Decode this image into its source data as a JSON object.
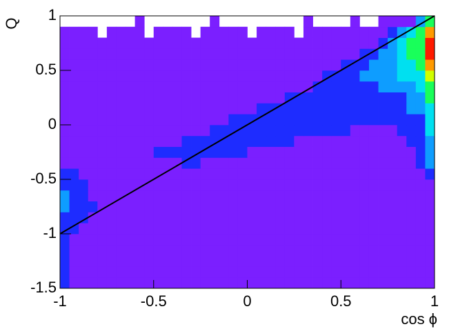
{
  "chart_data": {
    "type": "heatmap",
    "xlabel": "cos ϕ",
    "ylabel": "Q",
    "xlim": [
      -1,
      1
    ],
    "ylim": [
      -1.5,
      1
    ],
    "xticks": [
      -1,
      -0.5,
      0,
      0.5,
      1
    ],
    "yticks": [
      -1.5,
      -1,
      -0.5,
      0,
      0.5,
      1
    ],
    "colors": [
      "#7b1fff",
      "#1e2cff",
      "#0e9dff",
      "#00e0f0",
      "#19ff5a",
      "#d0ff00",
      "#ff9a00",
      "#ff1a00"
    ],
    "z": [
      [
        2,
        1,
        1,
        1,
        1,
        1,
        1,
        1,
        1,
        1,
        1,
        1,
        1,
        1,
        1,
        1,
        1,
        1,
        1,
        1,
        1,
        1,
        1,
        1,
        1,
        1,
        1,
        1,
        1,
        1,
        1,
        1,
        1,
        1,
        1,
        1,
        1,
        1,
        1,
        1
      ],
      [
        2,
        1,
        1,
        1,
        1,
        1,
        1,
        1,
        1,
        1,
        1,
        1,
        1,
        1,
        1,
        1,
        1,
        1,
        1,
        1,
        1,
        1,
        1,
        1,
        1,
        1,
        1,
        1,
        1,
        1,
        1,
        1,
        1,
        1,
        1,
        1,
        1,
        1,
        1,
        1
      ],
      [
        2,
        1,
        1,
        1,
        1,
        1,
        1,
        1,
        1,
        1,
        1,
        1,
        1,
        1,
        1,
        1,
        1,
        1,
        1,
        1,
        1,
        1,
        1,
        1,
        1,
        1,
        1,
        1,
        1,
        1,
        1,
        1,
        1,
        1,
        1,
        1,
        1,
        1,
        1,
        1
      ],
      [
        2,
        1,
        1,
        1,
        1,
        1,
        1,
        1,
        1,
        1,
        1,
        1,
        1,
        1,
        1,
        1,
        1,
        1,
        1,
        1,
        1,
        1,
        1,
        1,
        1,
        1,
        1,
        1,
        1,
        1,
        1,
        1,
        1,
        1,
        1,
        1,
        1,
        1,
        1,
        1
      ],
      [
        2,
        1,
        1,
        1,
        1,
        1,
        1,
        1,
        1,
        1,
        1,
        1,
        1,
        1,
        1,
        1,
        1,
        1,
        1,
        1,
        1,
        1,
        1,
        1,
        1,
        1,
        1,
        1,
        1,
        1,
        1,
        1,
        1,
        1,
        1,
        1,
        1,
        1,
        1,
        1
      ],
      [
        2,
        2,
        1,
        1,
        1,
        1,
        1,
        1,
        1,
        1,
        1,
        1,
        1,
        1,
        1,
        1,
        1,
        1,
        1,
        1,
        1,
        1,
        1,
        1,
        1,
        1,
        1,
        1,
        1,
        1,
        1,
        1,
        1,
        1,
        1,
        1,
        1,
        1,
        1,
        1
      ],
      [
        2,
        2,
        2,
        1,
        1,
        1,
        1,
        1,
        1,
        1,
        1,
        1,
        1,
        1,
        1,
        1,
        1,
        1,
        1,
        1,
        1,
        1,
        1,
        1,
        1,
        1,
        1,
        1,
        1,
        1,
        1,
        1,
        1,
        1,
        1,
        1,
        1,
        1,
        1,
        1
      ],
      [
        3,
        2,
        2,
        2,
        1,
        1,
        1,
        1,
        1,
        1,
        1,
        1,
        1,
        1,
        1,
        1,
        1,
        1,
        1,
        1,
        1,
        1,
        1,
        1,
        1,
        1,
        1,
        1,
        1,
        1,
        1,
        1,
        1,
        1,
        1,
        1,
        1,
        1,
        1,
        1
      ],
      [
        3,
        2,
        2,
        1,
        1,
        1,
        1,
        1,
        1,
        1,
        1,
        1,
        1,
        1,
        1,
        1,
        1,
        1,
        1,
        1,
        1,
        1,
        1,
        1,
        1,
        1,
        1,
        1,
        1,
        1,
        1,
        1,
        1,
        1,
        1,
        1,
        1,
        1,
        1,
        1
      ],
      [
        2,
        2,
        2,
        1,
        1,
        1,
        1,
        1,
        1,
        1,
        1,
        1,
        1,
        1,
        1,
        1,
        1,
        1,
        1,
        1,
        1,
        1,
        1,
        1,
        1,
        1,
        1,
        1,
        1,
        1,
        1,
        1,
        1,
        1,
        1,
        1,
        1,
        1,
        1,
        1
      ],
      [
        2,
        2,
        1,
        1,
        1,
        1,
        1,
        1,
        1,
        1,
        1,
        1,
        1,
        1,
        1,
        1,
        1,
        1,
        1,
        1,
        1,
        1,
        1,
        1,
        1,
        1,
        1,
        1,
        1,
        1,
        1,
        1,
        1,
        1,
        1,
        1,
        1,
        1,
        1,
        2
      ],
      [
        1,
        1,
        1,
        1,
        1,
        1,
        1,
        1,
        1,
        1,
        1,
        1,
        1,
        2,
        2,
        1,
        1,
        1,
        1,
        1,
        1,
        1,
        1,
        1,
        1,
        1,
        1,
        1,
        1,
        1,
        1,
        1,
        1,
        1,
        1,
        1,
        1,
        1,
        2,
        3
      ],
      [
        1,
        1,
        1,
        1,
        1,
        1,
        1,
        1,
        1,
        1,
        2,
        2,
        2,
        2,
        2,
        2,
        2,
        2,
        2,
        2,
        1,
        1,
        1,
        1,
        1,
        1,
        1,
        1,
        1,
        1,
        1,
        1,
        1,
        1,
        1,
        1,
        1,
        1,
        2,
        3
      ],
      [
        1,
        1,
        1,
        1,
        1,
        1,
        1,
        1,
        1,
        1,
        1,
        1,
        1,
        2,
        2,
        2,
        2,
        2,
        2,
        2,
        2,
        2,
        2,
        2,
        2,
        1,
        1,
        1,
        1,
        1,
        1,
        1,
        1,
        1,
        1,
        1,
        1,
        2,
        2,
        3
      ],
      [
        1,
        1,
        1,
        1,
        1,
        1,
        1,
        1,
        1,
        1,
        1,
        1,
        1,
        1,
        1,
        1,
        2,
        2,
        2,
        2,
        2,
        2,
        2,
        2,
        2,
        2,
        2,
        2,
        2,
        2,
        2,
        1,
        1,
        1,
        1,
        1,
        2,
        2,
        2,
        4
      ],
      [
        1,
        1,
        1,
        1,
        1,
        1,
        1,
        1,
        1,
        1,
        1,
        1,
        1,
        1,
        1,
        1,
        1,
        1,
        2,
        2,
        2,
        2,
        2,
        2,
        2,
        2,
        2,
        2,
        2,
        2,
        2,
        2,
        2,
        2,
        2,
        2,
        2,
        2,
        2,
        4
      ],
      [
        1,
        1,
        1,
        1,
        1,
        1,
        1,
        1,
        1,
        1,
        1,
        1,
        1,
        1,
        1,
        1,
        1,
        1,
        1,
        1,
        1,
        2,
        2,
        2,
        2,
        2,
        2,
        2,
        2,
        2,
        2,
        2,
        2,
        2,
        2,
        2,
        2,
        3,
        3,
        4
      ],
      [
        1,
        1,
        1,
        1,
        1,
        1,
        1,
        1,
        1,
        1,
        1,
        1,
        1,
        1,
        1,
        1,
        1,
        1,
        1,
        1,
        1,
        1,
        1,
        1,
        2,
        2,
        2,
        2,
        2,
        2,
        2,
        2,
        2,
        2,
        2,
        2,
        2,
        3,
        3,
        5
      ],
      [
        1,
        1,
        1,
        1,
        1,
        1,
        1,
        1,
        1,
        1,
        1,
        1,
        1,
        1,
        1,
        1,
        1,
        1,
        1,
        1,
        1,
        1,
        1,
        1,
        1,
        1,
        1,
        2,
        2,
        2,
        2,
        2,
        2,
        2,
        3,
        3,
        3,
        3,
        4,
        5
      ],
      [
        1,
        1,
        1,
        1,
        1,
        1,
        1,
        1,
        1,
        1,
        1,
        1,
        1,
        1,
        1,
        1,
        1,
        1,
        1,
        1,
        1,
        1,
        1,
        1,
        1,
        1,
        1,
        1,
        2,
        2,
        2,
        2,
        3,
        3,
        3,
        3,
        4,
        4,
        4,
        6
      ],
      [
        1,
        1,
        1,
        1,
        1,
        1,
        1,
        1,
        1,
        1,
        1,
        1,
        1,
        1,
        1,
        1,
        1,
        1,
        1,
        1,
        1,
        1,
        1,
        1,
        1,
        1,
        1,
        1,
        1,
        1,
        2,
        2,
        2,
        3,
        3,
        3,
        4,
        4,
        5,
        7
      ],
      [
        1,
        1,
        1,
        1,
        1,
        1,
        1,
        1,
        1,
        1,
        1,
        1,
        1,
        1,
        1,
        1,
        1,
        1,
        1,
        1,
        1,
        1,
        1,
        1,
        1,
        1,
        1,
        1,
        1,
        1,
        1,
        1,
        2,
        2,
        3,
        3,
        4,
        5,
        5,
        8
      ],
      [
        1,
        1,
        1,
        1,
        1,
        1,
        1,
        1,
        1,
        1,
        1,
        1,
        1,
        1,
        1,
        1,
        1,
        1,
        1,
        1,
        1,
        1,
        1,
        1,
        1,
        1,
        1,
        1,
        1,
        1,
        1,
        1,
        1,
        1,
        2,
        3,
        4,
        5,
        5,
        8
      ],
      [
        1,
        1,
        1,
        1,
        0,
        1,
        1,
        1,
        1,
        0,
        1,
        1,
        1,
        1,
        0,
        1,
        1,
        1,
        1,
        1,
        0,
        1,
        1,
        1,
        1,
        0,
        1,
        1,
        1,
        1,
        1,
        1,
        1,
        1,
        1,
        2,
        3,
        4,
        5,
        7
      ],
      [
        0,
        0,
        0,
        0,
        0,
        0,
        0,
        0,
        1,
        0,
        0,
        0,
        0,
        0,
        0,
        0,
        1,
        0,
        0,
        0,
        0,
        0,
        0,
        0,
        0,
        0,
        1,
        0,
        0,
        0,
        0,
        1,
        0,
        0,
        1,
        1,
        1,
        1,
        3,
        5
      ]
    ],
    "line": {
      "x": [
        -1,
        1
      ],
      "y": [
        -1,
        1
      ],
      "color": "#000000"
    }
  }
}
